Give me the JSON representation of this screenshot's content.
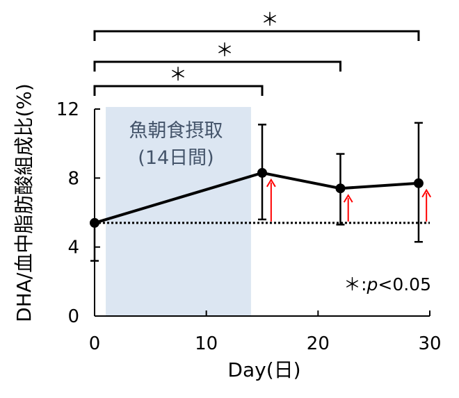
{
  "chart_data": {
    "type": "line",
    "xlabel": "Day(日)",
    "ylabel": "DHA/血中脂肪酸組成比(%)",
    "xlim": [
      0,
      30
    ],
    "ylim": [
      0,
      12
    ],
    "x_ticks": [
      0,
      10,
      20,
      30
    ],
    "y_ticks": [
      0,
      4,
      8,
      12
    ],
    "series": [
      {
        "x": [
          0,
          15,
          22,
          29
        ],
        "y": [
          5.4,
          8.3,
          7.4,
          7.7
        ],
        "error_upper": [
          null,
          11.1,
          9.4,
          11.2
        ],
        "error_lower": [
          3.2,
          5.6,
          5.3,
          4.3
        ],
        "color": "#000000"
      }
    ],
    "baseline": {
      "y": 5.4,
      "style": "dotted"
    },
    "shaded_region": {
      "x_start": 1,
      "x_end": 14,
      "color": "#dce6f2",
      "label_line1": "魚朝食摂取",
      "label_line2": "(14日間)"
    },
    "increase_arrows": {
      "x": [
        15.8,
        22.7,
        29.7
      ],
      "from_y": 5.4,
      "to_y": [
        7.9,
        7.0,
        7.3
      ],
      "color": "#ff0000"
    },
    "significance_brackets": [
      {
        "x_start": 0,
        "x_end": 15,
        "label": "＊"
      },
      {
        "x_start": 0,
        "x_end": 22,
        "label": "＊"
      },
      {
        "x_start": 0,
        "x_end": 29,
        "label": "＊"
      }
    ],
    "significance_note": {
      "star": "＊",
      "p_symbol": "p",
      "threshold": "<0.05"
    },
    "grid": false,
    "legend": "none"
  }
}
